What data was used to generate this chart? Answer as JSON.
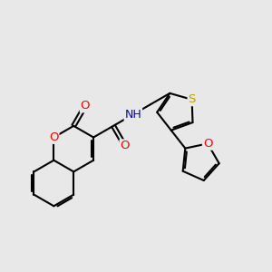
{
  "bg": "#e8e8e8",
  "bc": "#000000",
  "bw": 1.5,
  "dbo": 0.07,
  "shrink": 0.12,
  "atom_colors": {
    "O": "#ff0000",
    "N": "#0000cd",
    "S": "#b8a000",
    "H": "#4a9a8a"
  },
  "fs": 9.5,
  "figsize": [
    3.0,
    3.0
  ],
  "dpi": 100,
  "xlim": [
    0,
    10
  ],
  "ylim": [
    0,
    10
  ]
}
